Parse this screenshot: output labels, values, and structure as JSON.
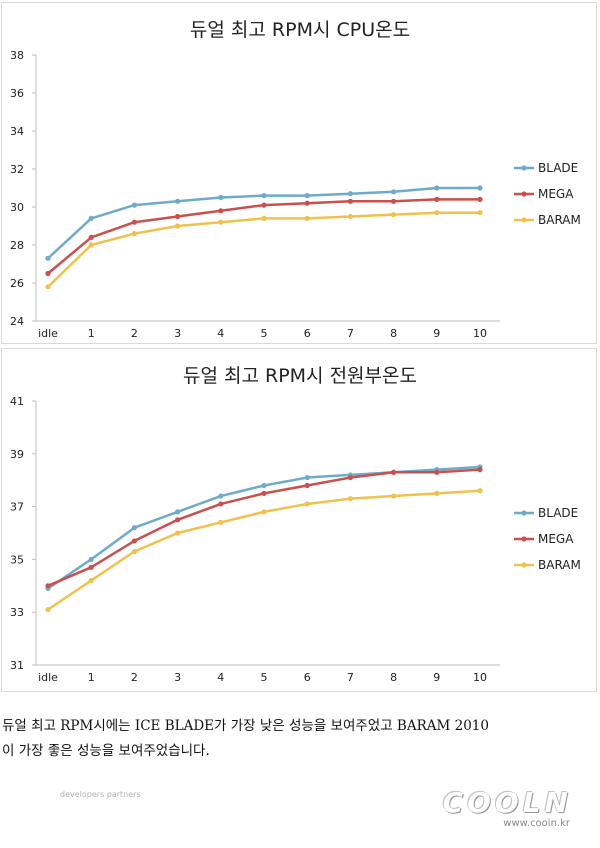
{
  "chart_data": [
    {
      "type": "line",
      "title": "듀얼 최고 RPM시 CPU온도",
      "categories": [
        "idle",
        "1",
        "2",
        "3",
        "4",
        "5",
        "6",
        "7",
        "8",
        "9",
        "10"
      ],
      "ylim": [
        24,
        38
      ],
      "yticks": [
        24,
        26,
        28,
        30,
        32,
        34,
        36,
        38
      ],
      "grid": false,
      "legend_position": "right",
      "series": [
        {
          "name": "BLADE",
          "color": "#6fabc9",
          "values": [
            27.3,
            29.4,
            30.1,
            30.3,
            30.5,
            30.6,
            30.6,
            30.7,
            30.8,
            31.0,
            31.0
          ]
        },
        {
          "name": "MEGA",
          "color": "#c9504d",
          "values": [
            26.5,
            28.4,
            29.2,
            29.5,
            29.8,
            30.1,
            30.2,
            30.3,
            30.3,
            30.4,
            30.4
          ]
        },
        {
          "name": "BARAM",
          "color": "#efc24e",
          "values": [
            25.8,
            28.0,
            28.6,
            29.0,
            29.2,
            29.4,
            29.4,
            29.5,
            29.6,
            29.7,
            29.7
          ]
        }
      ]
    },
    {
      "type": "line",
      "title": "듀얼 최고 RPM시 전원부온도",
      "categories": [
        "idle",
        "1",
        "2",
        "3",
        "4",
        "5",
        "6",
        "7",
        "8",
        "9",
        "10"
      ],
      "ylim": [
        31,
        41
      ],
      "yticks": [
        31,
        33,
        35,
        37,
        39,
        41
      ],
      "grid": false,
      "legend_position": "right",
      "series": [
        {
          "name": "BLADE",
          "color": "#6fabc9",
          "values": [
            33.9,
            35.0,
            36.2,
            36.8,
            37.4,
            37.8,
            38.1,
            38.2,
            38.3,
            38.4,
            38.5
          ]
        },
        {
          "name": "MEGA",
          "color": "#c9504d",
          "values": [
            34.0,
            34.7,
            35.7,
            36.5,
            37.1,
            37.5,
            37.8,
            38.1,
            38.3,
            38.3,
            38.4
          ]
        },
        {
          "name": "BARAM",
          "color": "#efc24e",
          "values": [
            33.1,
            34.2,
            35.3,
            36.0,
            36.4,
            36.8,
            37.1,
            37.3,
            37.4,
            37.5,
            37.6
          ]
        }
      ]
    }
  ],
  "caption": {
    "line1": "듀얼 최고 RPM시에는 ICE BLADE가 가장 낮은 성능을 보여주었고 BARAM 2010",
    "line2": "이 가장 좋은 성능을 보여주었습니다."
  },
  "footer": {
    "brand": "COOLN",
    "url": "www.cooin.kr",
    "partners_label": "developers partners"
  }
}
